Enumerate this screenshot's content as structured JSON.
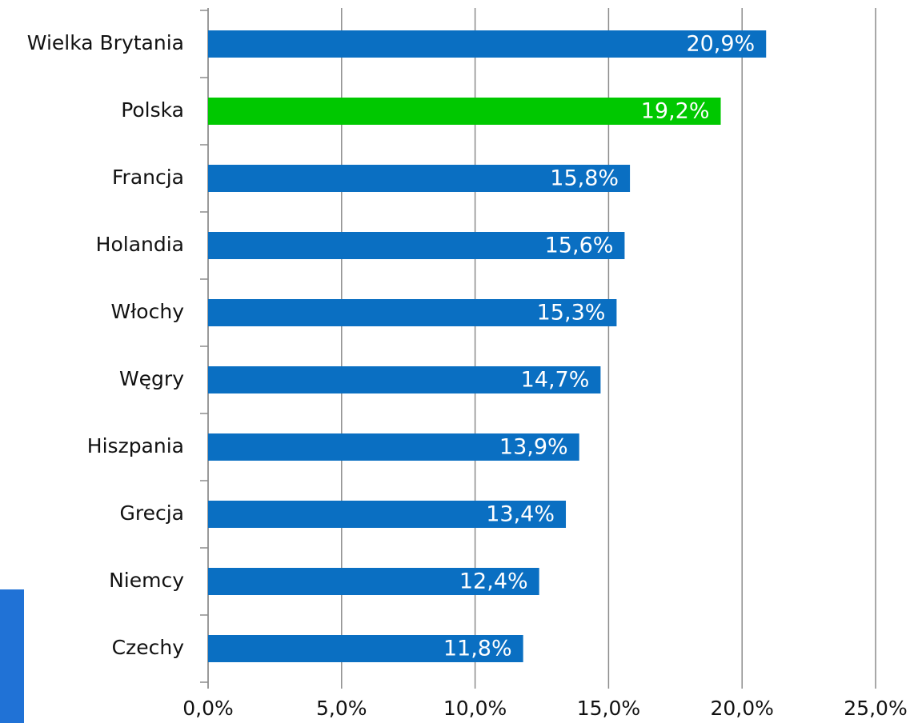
{
  "chart_data": {
    "type": "hbar",
    "categories": [
      "Wielka Brytania",
      "Polska",
      "Francja",
      "Holandia",
      "Włochy",
      "Węgry",
      "Hiszpania",
      "Grecja",
      "Niemcy",
      "Czechy"
    ],
    "values": [
      20.9,
      19.2,
      15.8,
      15.6,
      15.3,
      14.7,
      13.9,
      13.4,
      12.4,
      11.8
    ],
    "value_labels": [
      "20,9%",
      "19,2%",
      "15,8%",
      "15,6%",
      "15,3%",
      "14,7%",
      "13,9%",
      "13,4%",
      "12,4%",
      "11,8%"
    ],
    "colors": [
      "#0a6fc2",
      "#00c800",
      "#0a6fc2",
      "#0a6fc2",
      "#0a6fc2",
      "#0a6fc2",
      "#0a6fc2",
      "#0a6fc2",
      "#0a6fc2",
      "#0a6fc2"
    ],
    "xlim": [
      0,
      25
    ],
    "xticks": [
      {
        "value": 0,
        "label": "0,0%"
      },
      {
        "value": 5,
        "label": "5,0%"
      },
      {
        "value": 10,
        "label": "10,0%"
      },
      {
        "value": 15,
        "label": "15,0%"
      },
      {
        "value": 20,
        "label": "20,0%"
      },
      {
        "value": 25,
        "label": "25,0%"
      }
    ],
    "grid": true
  }
}
